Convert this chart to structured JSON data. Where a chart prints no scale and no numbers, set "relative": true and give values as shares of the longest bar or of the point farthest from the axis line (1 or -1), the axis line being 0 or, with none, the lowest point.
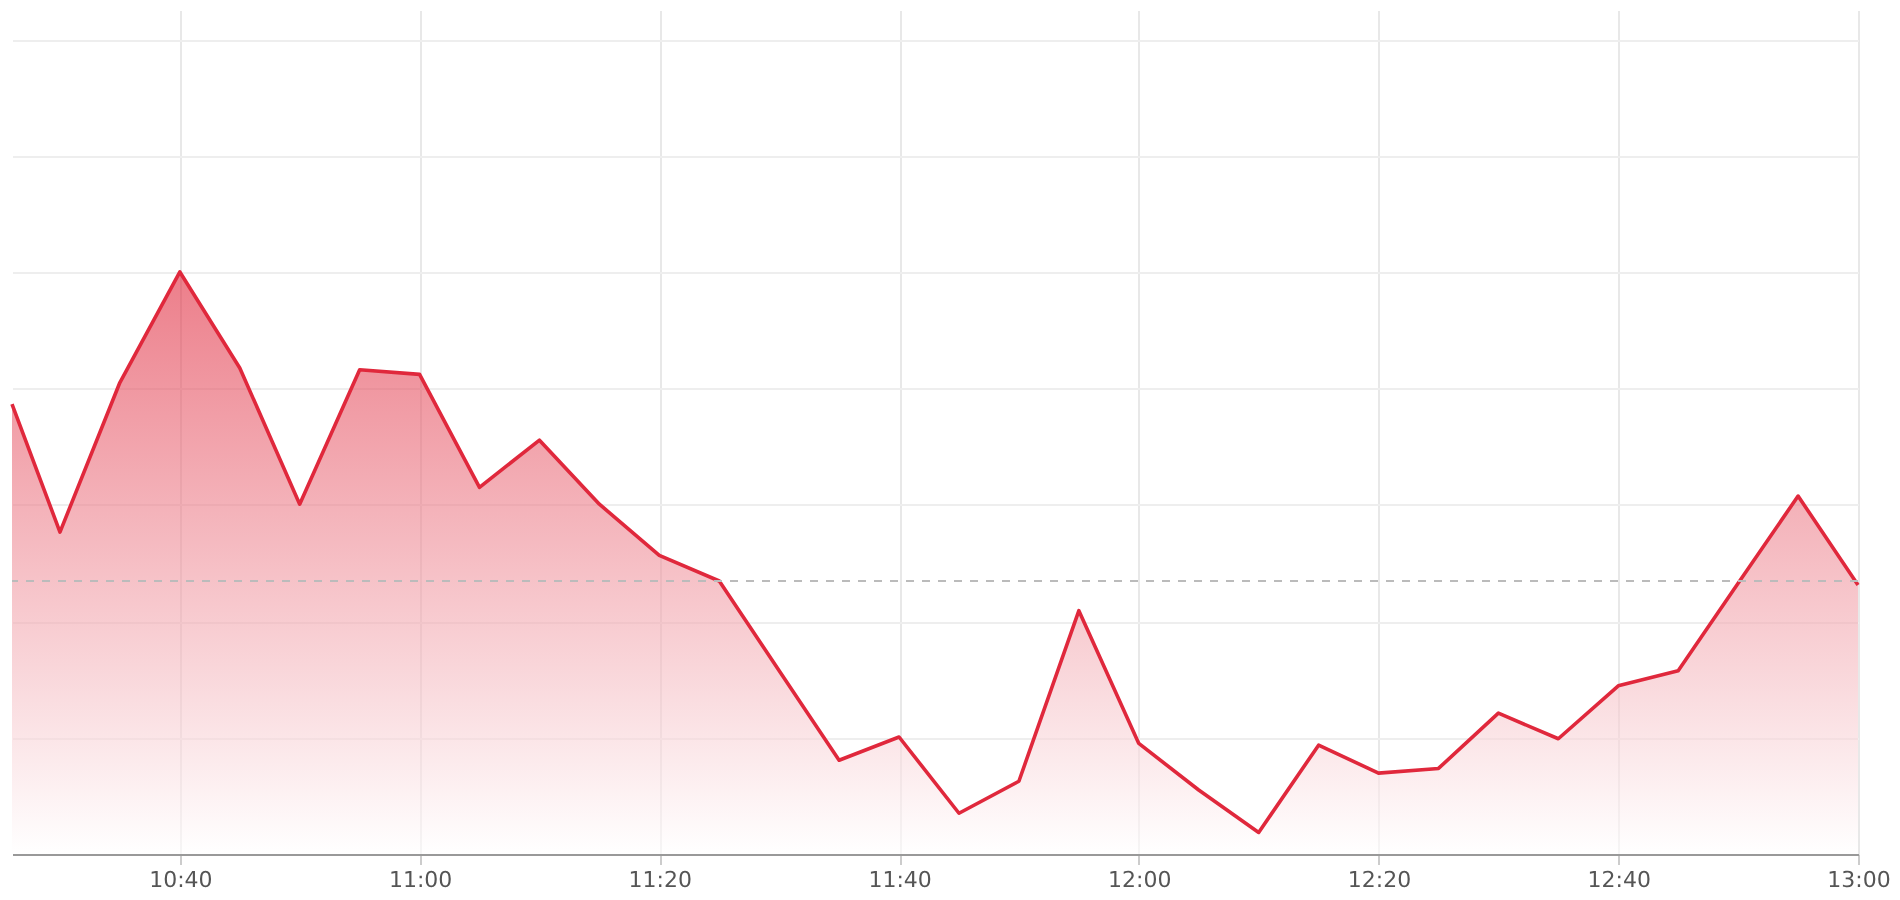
{
  "chart_data": {
    "type": "area",
    "relative": true,
    "x": [
      10.4333,
      10.5,
      10.5833,
      10.6667,
      10.75,
      10.8333,
      10.9167,
      11,
      11.0833,
      11.1667,
      11.25,
      11.3333,
      11.4167,
      11.5,
      11.5833,
      11.6667,
      11.75,
      11.8333,
      11.9167,
      12,
      12.0833,
      12.1667,
      12.25,
      12.3333,
      12.4167,
      12.5,
      12.5833,
      12.6667,
      12.75,
      12.8333,
      12.9167,
      13
    ],
    "series": [
      {
        "color": "#e0283c",
        "values": [
          0.773,
          0.553,
          0.81,
          1.0,
          0.835,
          0.601,
          0.832,
          0.824,
          0.63,
          0.711,
          0.601,
          0.513,
          0.469,
          0.315,
          0.161,
          0.201,
          0.07,
          0.125,
          0.418,
          0.19,
          0.11,
          0.037,
          0.187,
          0.139,
          0.147,
          0.242,
          0.198,
          0.289,
          0.315,
          0.465,
          0.615,
          0.462
        ]
      }
    ],
    "xlim": [
      10.4333,
      13
    ],
    "xticks": [
      {
        "value": 10.6667,
        "label": "10:40"
      },
      {
        "value": 11,
        "label": "11:00"
      },
      {
        "value": 11.3333,
        "label": "11:20"
      },
      {
        "value": 11.6667,
        "label": "11:40"
      },
      {
        "value": 12,
        "label": "12:00"
      },
      {
        "value": 12.3333,
        "label": "12:20"
      },
      {
        "value": 12.6667,
        "label": "12:40"
      },
      {
        "value": 13,
        "label": "13:00"
      }
    ],
    "ref_lines": [
      {
        "axis": "y",
        "value": 0.469,
        "color": "#bbbbbb",
        "line_style": "dashed"
      }
    ],
    "grid": true,
    "marker": "none",
    "line_style": "solid"
  }
}
